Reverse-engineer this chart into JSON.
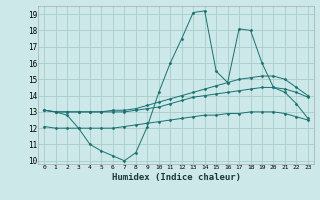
{
  "title": "",
  "xlabel": "Humidex (Indice chaleur)",
  "ylabel": "",
  "background_color": "#cce8e8",
  "grid_color": "#aacccc",
  "line_color": "#1a7070",
  "xlim": [
    -0.5,
    23.5
  ],
  "ylim": [
    9.8,
    19.5
  ],
  "yticks": [
    10,
    11,
    12,
    13,
    14,
    15,
    16,
    17,
    18,
    19
  ],
  "xticks": [
    0,
    1,
    2,
    3,
    4,
    5,
    6,
    7,
    8,
    9,
    10,
    11,
    12,
    13,
    14,
    15,
    16,
    17,
    18,
    19,
    20,
    21,
    22,
    23
  ],
  "series": [
    {
      "x": [
        0,
        1,
        2,
        3,
        4,
        5,
        6,
        7,
        8,
        9,
        10,
        11,
        12,
        13,
        14,
        15,
        16,
        17,
        18,
        19,
        20,
        21,
        22,
        23
      ],
      "y": [
        13.1,
        13.0,
        12.8,
        12.0,
        11.0,
        10.6,
        10.3,
        10.0,
        10.5,
        12.1,
        14.2,
        16.0,
        17.5,
        19.1,
        19.2,
        15.5,
        14.8,
        18.1,
        18.0,
        16.0,
        14.5,
        14.2,
        13.5,
        12.6
      ]
    },
    {
      "x": [
        0,
        1,
        2,
        3,
        4,
        5,
        6,
        7,
        8,
        9,
        10,
        11,
        12,
        13,
        14,
        15,
        16,
        17,
        18,
        19,
        20,
        21,
        22,
        23
      ],
      "y": [
        13.1,
        13.0,
        13.0,
        13.0,
        13.0,
        13.0,
        13.1,
        13.1,
        13.2,
        13.4,
        13.6,
        13.8,
        14.0,
        14.2,
        14.4,
        14.6,
        14.8,
        15.0,
        15.1,
        15.2,
        15.2,
        15.0,
        14.5,
        14.0
      ]
    },
    {
      "x": [
        0,
        1,
        2,
        3,
        4,
        5,
        6,
        7,
        8,
        9,
        10,
        11,
        12,
        13,
        14,
        15,
        16,
        17,
        18,
        19,
        20,
        21,
        22,
        23
      ],
      "y": [
        13.1,
        13.0,
        13.0,
        13.0,
        13.0,
        13.0,
        13.0,
        13.0,
        13.1,
        13.2,
        13.3,
        13.5,
        13.7,
        13.9,
        14.0,
        14.1,
        14.2,
        14.3,
        14.4,
        14.5,
        14.5,
        14.4,
        14.2,
        13.9
      ]
    },
    {
      "x": [
        0,
        1,
        2,
        3,
        4,
        5,
        6,
        7,
        8,
        9,
        10,
        11,
        12,
        13,
        14,
        15,
        16,
        17,
        18,
        19,
        20,
        21,
        22,
        23
      ],
      "y": [
        12.1,
        12.0,
        12.0,
        12.0,
        12.0,
        12.0,
        12.0,
        12.1,
        12.2,
        12.3,
        12.4,
        12.5,
        12.6,
        12.7,
        12.8,
        12.8,
        12.9,
        12.9,
        13.0,
        13.0,
        13.0,
        12.9,
        12.7,
        12.5
      ]
    }
  ]
}
